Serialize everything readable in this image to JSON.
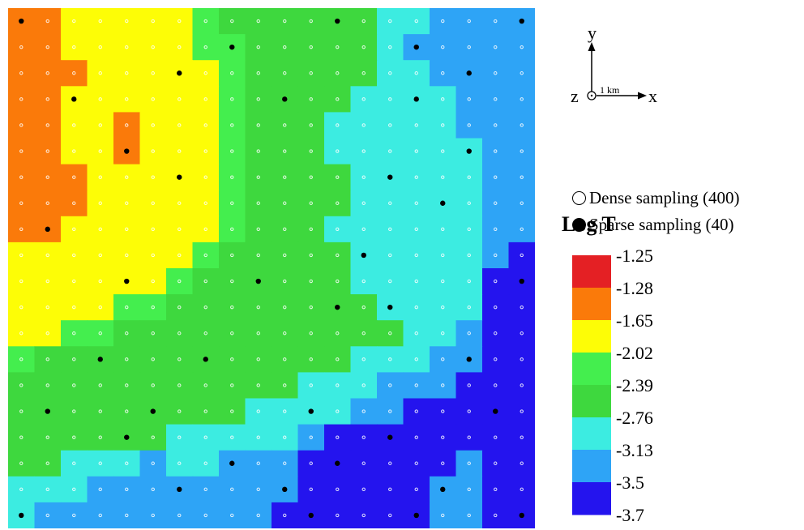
{
  "chart_data": {
    "type": "heatmap",
    "title": "",
    "xlabel": "",
    "ylabel": "",
    "grid": {
      "nx": 20,
      "ny": 20
    },
    "cell_classes": [
      [
        1,
        1,
        2,
        2,
        2,
        2,
        2,
        3,
        4,
        4,
        4,
        4,
        4,
        4,
        5,
        5,
        6,
        6,
        6,
        6
      ],
      [
        1,
        1,
        2,
        2,
        2,
        2,
        2,
        3,
        3,
        4,
        4,
        4,
        4,
        4,
        5,
        6,
        6,
        6,
        6,
        6
      ],
      [
        1,
        1,
        1,
        2,
        2,
        2,
        2,
        2,
        3,
        4,
        4,
        4,
        4,
        4,
        5,
        5,
        6,
        6,
        6,
        6
      ],
      [
        1,
        1,
        2,
        2,
        2,
        2,
        2,
        2,
        3,
        4,
        4,
        4,
        4,
        5,
        5,
        5,
        5,
        6,
        6,
        6
      ],
      [
        1,
        1,
        2,
        2,
        1,
        2,
        2,
        2,
        3,
        4,
        4,
        4,
        5,
        5,
        5,
        5,
        5,
        6,
        6,
        6
      ],
      [
        1,
        1,
        2,
        2,
        1,
        2,
        2,
        2,
        3,
        4,
        4,
        4,
        5,
        5,
        5,
        5,
        5,
        5,
        6,
        6
      ],
      [
        1,
        1,
        1,
        2,
        2,
        2,
        2,
        2,
        3,
        4,
        4,
        4,
        4,
        5,
        5,
        5,
        5,
        5,
        6,
        6
      ],
      [
        1,
        1,
        1,
        2,
        2,
        2,
        2,
        2,
        3,
        4,
        4,
        4,
        4,
        5,
        5,
        5,
        5,
        5,
        6,
        6
      ],
      [
        1,
        1,
        2,
        2,
        2,
        2,
        2,
        2,
        3,
        4,
        4,
        4,
        5,
        5,
        5,
        5,
        5,
        5,
        6,
        6
      ],
      [
        2,
        2,
        2,
        2,
        2,
        2,
        2,
        3,
        4,
        4,
        4,
        4,
        4,
        5,
        5,
        5,
        5,
        5,
        6,
        7
      ],
      [
        2,
        2,
        2,
        2,
        2,
        2,
        3,
        4,
        4,
        4,
        4,
        4,
        4,
        5,
        5,
        5,
        5,
        5,
        7,
        7
      ],
      [
        2,
        2,
        2,
        2,
        3,
        3,
        4,
        4,
        4,
        4,
        4,
        4,
        4,
        4,
        5,
        5,
        5,
        5,
        7,
        7
      ],
      [
        2,
        2,
        3,
        3,
        4,
        4,
        4,
        4,
        4,
        4,
        4,
        4,
        4,
        4,
        4,
        5,
        5,
        6,
        7,
        7
      ],
      [
        3,
        4,
        4,
        4,
        4,
        4,
        4,
        4,
        4,
        4,
        4,
        4,
        4,
        5,
        5,
        5,
        6,
        6,
        7,
        7
      ],
      [
        4,
        4,
        4,
        4,
        4,
        4,
        4,
        4,
        4,
        4,
        4,
        5,
        5,
        5,
        6,
        6,
        6,
        7,
        7,
        7
      ],
      [
        4,
        4,
        4,
        4,
        4,
        4,
        4,
        4,
        4,
        5,
        5,
        5,
        5,
        6,
        6,
        7,
        7,
        7,
        7,
        7
      ],
      [
        4,
        4,
        4,
        4,
        4,
        4,
        5,
        5,
        5,
        5,
        5,
        6,
        7,
        7,
        7,
        7,
        7,
        7,
        7,
        7
      ],
      [
        4,
        4,
        5,
        5,
        5,
        6,
        5,
        5,
        6,
        6,
        6,
        7,
        7,
        7,
        7,
        7,
        7,
        6,
        7,
        7
      ],
      [
        5,
        5,
        5,
        6,
        6,
        6,
        6,
        6,
        6,
        6,
        6,
        7,
        7,
        7,
        7,
        7,
        6,
        6,
        7,
        7
      ],
      [
        5,
        6,
        6,
        6,
        6,
        6,
        6,
        6,
        6,
        6,
        7,
        7,
        7,
        7,
        7,
        7,
        6,
        6,
        7,
        7
      ]
    ],
    "sparse_points": [
      [
        0,
        0
      ],
      [
        12,
        0
      ],
      [
        19,
        0
      ],
      [
        8,
        1
      ],
      [
        15,
        1
      ],
      [
        6,
        2
      ],
      [
        17,
        2
      ],
      [
        2,
        3
      ],
      [
        10,
        3
      ],
      [
        15,
        3
      ],
      [
        4,
        5
      ],
      [
        17,
        5
      ],
      [
        6,
        6
      ],
      [
        14,
        6
      ],
      [
        16,
        7
      ],
      [
        1,
        8
      ],
      [
        13,
        9
      ],
      [
        4,
        10
      ],
      [
        9,
        10
      ],
      [
        19,
        10
      ],
      [
        12,
        11
      ],
      [
        14,
        11
      ],
      [
        3,
        13
      ],
      [
        7,
        13
      ],
      [
        17,
        13
      ],
      [
        1,
        15
      ],
      [
        5,
        15
      ],
      [
        11,
        15
      ],
      [
        18,
        15
      ],
      [
        4,
        16
      ],
      [
        14,
        16
      ],
      [
        8,
        17
      ],
      [
        12,
        17
      ],
      [
        6,
        18
      ],
      [
        10,
        18
      ],
      [
        16,
        18
      ],
      [
        0,
        19
      ],
      [
        11,
        19
      ],
      [
        15,
        19
      ],
      [
        19,
        19
      ]
    ],
    "colors": [
      "#e42024",
      "#fa7a0a",
      "#fdfd06",
      "#44ee4e",
      "#3ed83e",
      "#3cece1",
      "#2ea4f6",
      "#2414ee"
    ],
    "levels": [
      "-1.25",
      "-1.28",
      "-1.65",
      "-2.02",
      "-2.39",
      "-2.76",
      "-3.13",
      "-3.5",
      "-3.7"
    ],
    "colorbar_title": "Log T",
    "axes_key": {
      "y": "y",
      "x": "x",
      "z": "z",
      "scale": "1 km"
    },
    "legend": {
      "dense": "Dense sampling (400)",
      "sparse": "Sparse sampling (40)"
    }
  }
}
